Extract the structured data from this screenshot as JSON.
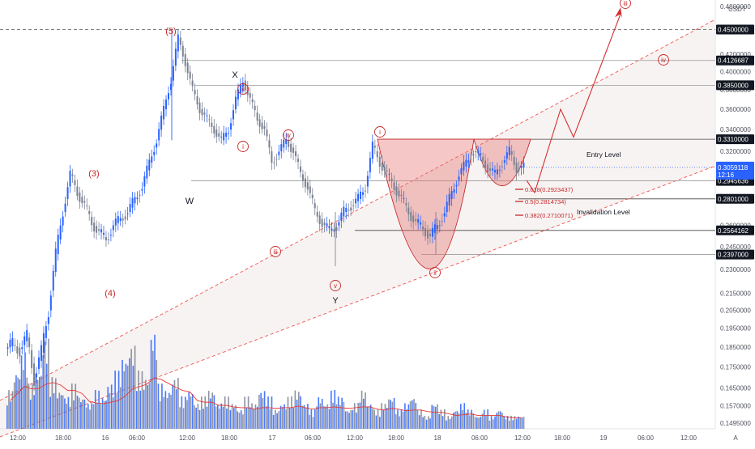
{
  "chart_data": {
    "type": "candlestick",
    "instrument_currency": "USDT",
    "price_axis": {
      "ylim": [
        0.14,
        0.49
      ],
      "ticks": [
        "0.4800000",
        "0.4500000",
        "0.4200000",
        "0.4000000",
        "0.3800000",
        "0.3600000",
        "0.3400000",
        "0.3200000",
        "0.3000000",
        "0.2800000",
        "0.2600000",
        "0.2450000",
        "0.2300000",
        "0.2150000",
        "0.2050000",
        "0.1950000",
        "0.1850000",
        "0.1750000",
        "0.1650000",
        "0.1570000",
        "0.1495000"
      ]
    },
    "time_axis": {
      "ticks": [
        "12:00",
        "18:00",
        "16",
        "06:00",
        "12:00",
        "18:00",
        "17",
        "06:00",
        "12:00",
        "18:00",
        "18",
        "06:00",
        "12:00",
        "18:00",
        "19",
        "06:00",
        "12:00"
      ]
    },
    "current_price": {
      "value": "0.3059118",
      "countdown": "12:16",
      "color": "#2962ff"
    },
    "price_labels": [
      {
        "value": "0.4500000",
        "price": 0.45
      },
      {
        "value": "0.4126687",
        "price": 0.4126687
      },
      {
        "value": "0.3850000",
        "price": 0.385
      },
      {
        "value": "0.3310000",
        "price": 0.331
      },
      {
        "value": "0.2945636",
        "price": 0.2945636
      },
      {
        "value": "0.2801000",
        "price": 0.2801
      },
      {
        "value": "0.2564162",
        "price": 0.2564162
      },
      {
        "value": "0.2397000",
        "price": 0.2397
      }
    ],
    "wave_labels": {
      "primary": [
        "(3)",
        "(4)",
        "(5)"
      ],
      "corrective": [
        "W",
        "X",
        "Y"
      ],
      "minor": [
        "i",
        "ii",
        "iii",
        "iv",
        "v"
      ],
      "projection": [
        "i",
        "ii",
        "iii",
        "iv"
      ]
    },
    "fibonacci": [
      {
        "ratio": "0.618",
        "price": "0.2923437"
      },
      {
        "ratio": "0.5",
        "price": "0.2814734"
      },
      {
        "ratio": "0.382",
        "price": "0.2710071"
      }
    ],
    "annotations": {
      "entry": "Entry Level",
      "invalidation": "Invalidation Level"
    },
    "corner_label": "A",
    "colors": {
      "label_bg": "#131722",
      "up": "#2962ff",
      "down": "#7b8192",
      "wave": "#c62828",
      "channel": "#ef5350",
      "ma": "#e53935",
      "pattern_fill": "#e57373"
    },
    "candles_approx": {
      "description": "close prices in USDT sampled along the visible session",
      "closes": [
        0.186,
        0.184,
        0.19,
        0.17,
        0.182,
        0.205,
        0.24,
        0.27,
        0.3,
        0.285,
        0.275,
        0.262,
        0.255,
        0.25,
        0.26,
        0.265,
        0.27,
        0.28,
        0.29,
        0.31,
        0.33,
        0.36,
        0.39,
        0.44,
        0.41,
        0.38,
        0.36,
        0.35,
        0.34,
        0.33,
        0.34,
        0.37,
        0.39,
        0.37,
        0.35,
        0.34,
        0.31,
        0.32,
        0.33,
        0.32,
        0.3,
        0.29,
        0.27,
        0.262,
        0.256,
        0.26,
        0.27,
        0.275,
        0.28,
        0.29,
        0.325,
        0.31,
        0.3,
        0.29,
        0.28,
        0.27,
        0.262,
        0.258,
        0.252,
        0.26,
        0.27,
        0.285,
        0.3,
        0.31,
        0.32,
        0.315,
        0.305,
        0.3,
        0.31,
        0.32,
        0.305,
        0.306
      ],
      "volumes": [
        0.6,
        0.9,
        1.2,
        0.7,
        0.9,
        1.4,
        0.8,
        0.6,
        0.5,
        0.7,
        0.5,
        0.4,
        0.6,
        0.5,
        0.7,
        0.9,
        1.1,
        1.3,
        0.9,
        0.8,
        1.5,
        0.7,
        0.6,
        0.8,
        0.5,
        0.6,
        0.4,
        0.5,
        0.6,
        0.4,
        0.5,
        0.4,
        0.3,
        0.5,
        0.4,
        0.6,
        0.5,
        0.3,
        0.4,
        0.5,
        0.6,
        0.4,
        0.3,
        0.5,
        0.4,
        0.6,
        0.5,
        0.3,
        0.4,
        0.6,
        0.4,
        0.3,
        0.4,
        0.5,
        0.3,
        0.4,
        0.5,
        0.3,
        0.2,
        0.4,
        0.3,
        0.2,
        0.3,
        0.4,
        0.3,
        0.2,
        0.3,
        0.2,
        0.3,
        0.2,
        0.2,
        0.2
      ]
    }
  }
}
